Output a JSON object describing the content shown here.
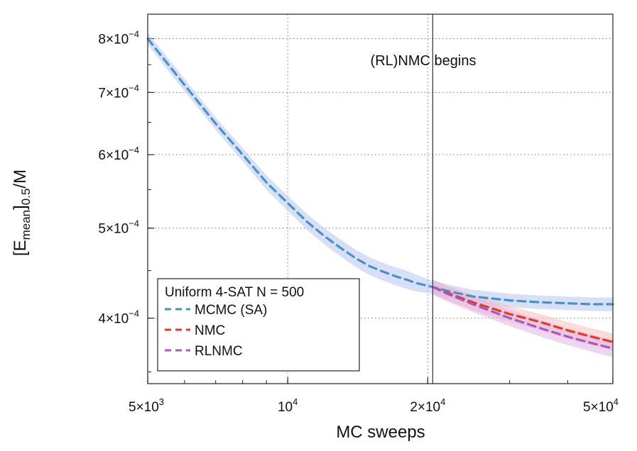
{
  "chart_data": {
    "type": "line",
    "x_scale": "log",
    "y_scale": "log",
    "xlabel": "MC sweeps",
    "ylabel_main": "[E",
    "ylabel_sub": "mean",
    "ylabel_rest": "]",
    "ylabel_sub2": "0.5",
    "ylabel_end": "/M",
    "xlim": [
      5000,
      50000
    ],
    "ylim": [
      0.00034,
      0.00085
    ],
    "grid": true,
    "x_ticks": [
      {
        "value": 5000,
        "mant": "5×10",
        "exp": "3"
      },
      {
        "value": 10000,
        "mant": "10",
        "exp": "4"
      },
      {
        "value": 20000,
        "mant": "2×10",
        "exp": "4"
      },
      {
        "value": 50000,
        "mant": "5×10",
        "exp": "4"
      }
    ],
    "y_ticks": [
      {
        "value": 0.0004,
        "mant": "4×10",
        "exp": "−4"
      },
      {
        "value": 0.0005,
        "mant": "5×10",
        "exp": "−4"
      },
      {
        "value": 0.0006,
        "mant": "6×10",
        "exp": "−4"
      },
      {
        "value": 0.0007,
        "mant": "7×10",
        "exp": "−4"
      },
      {
        "value": 0.0008,
        "mant": "8×10",
        "exp": "−4"
      }
    ],
    "vline": {
      "x": 20500,
      "label": "(RL)NMC begins"
    },
    "legend": {
      "title": "Uniform 4-SAT N = 500",
      "placement": "lower-left"
    },
    "series": [
      {
        "name": "MCMC (SA)",
        "color": "#4a90c8",
        "band_color": "#b7c6ee",
        "x": [
          5000,
          6000,
          7000,
          8000,
          9000,
          10000,
          11000,
          12000,
          13000,
          14000,
          15000,
          16000,
          17000,
          18000,
          19000,
          20500,
          22000,
          25000,
          30000,
          35000,
          40000,
          45000,
          50000
        ],
        "y": [
          0.0008,
          0.000713,
          0.000648,
          0.0006,
          0.00056,
          0.000532,
          0.000508,
          0.00049,
          0.000476,
          0.000464,
          0.000455,
          0.000449,
          0.000444,
          0.00044,
          0.000436,
          0.000432,
          0.000428,
          0.000422,
          0.000418,
          0.000416,
          0.000415,
          0.000414,
          0.000414
        ],
        "band": [
          1.2e-05,
          1.1e-05,
          1e-05,
          1e-05,
          1e-05,
          1e-05,
          1e-05,
          1e-05,
          1e-05,
          1e-05,
          1e-05,
          1e-05,
          1e-05,
          1e-05,
          9e-06,
          7e-06,
          7e-06,
          7e-06,
          7e-06,
          7e-06,
          7e-06,
          7e-06,
          7e-06
        ]
      },
      {
        "name": "NMC",
        "color": "#e03a2e",
        "band_color": "#f5c0b8",
        "x": [
          20500,
          22000,
          25000,
          30000,
          35000,
          40000,
          45000,
          50000
        ],
        "y": [
          0.000432,
          0.000426,
          0.000416,
          0.000404,
          0.000396,
          0.000388,
          0.000382,
          0.000377
        ],
        "band": [
          8e-06,
          8e-06,
          8e-06,
          8e-06,
          8e-06,
          8e-06,
          8e-06,
          8e-06
        ]
      },
      {
        "name": "RLNMC",
        "color": "#a85ab8",
        "band_color": "#ddb5e8",
        "x": [
          20500,
          22000,
          25000,
          30000,
          35000,
          40000,
          45000,
          50000
        ],
        "y": [
          0.000432,
          0.000425,
          0.000414,
          0.0004,
          0.00039,
          0.000382,
          0.000376,
          0.000371
        ],
        "band": [
          8e-06,
          8e-06,
          8e-06,
          8e-06,
          8e-06,
          8e-06,
          8e-06,
          8e-06
        ]
      }
    ]
  }
}
